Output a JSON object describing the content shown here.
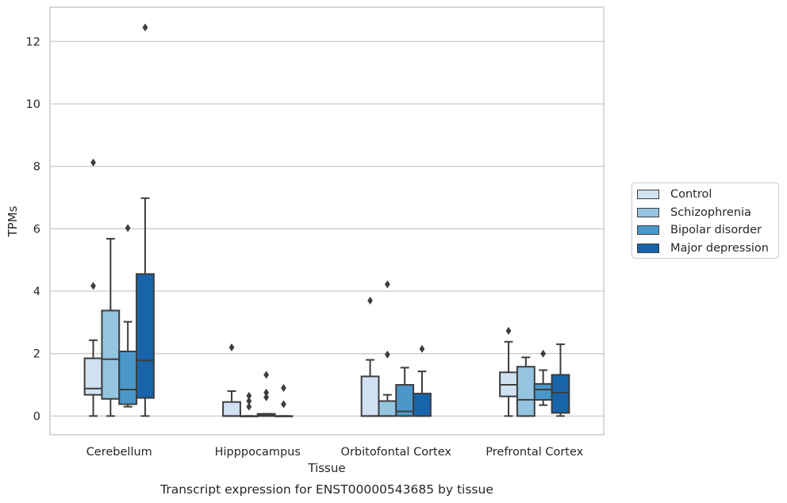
{
  "chart_data": {
    "type": "boxplot",
    "title": "Transcript expression for ENST00000543685 by tissue",
    "xlabel": "Tissue",
    "ylabel": "TPMs",
    "ylim": [
      -0.6,
      13.1
    ],
    "yticks": [
      0,
      2,
      4,
      6,
      8,
      10,
      12
    ],
    "grid": "horizontal",
    "legend_position": "right",
    "categories": [
      "Cerebellum",
      "Hipppocampus",
      "Orbitofontal Cortex",
      "Prefrontal Cortex"
    ],
    "series": [
      {
        "name": "Control",
        "color": "#d0e1f2",
        "boxes": [
          {
            "whislo": 0.0,
            "q1": 0.68,
            "med": 0.88,
            "q3": 1.85,
            "whishi": 2.43,
            "fliers": [
              4.17,
              8.12
            ]
          },
          {
            "whislo": 0.0,
            "q1": 0.0,
            "med": 0.0,
            "q3": 0.45,
            "whishi": 0.8,
            "fliers": [
              2.2
            ]
          },
          {
            "whislo": 0.0,
            "q1": 0.0,
            "med": 0.0,
            "q3": 1.27,
            "whishi": 1.8,
            "fliers": [
              3.7
            ]
          },
          {
            "whislo": 0.0,
            "q1": 0.63,
            "med": 1.0,
            "q3": 1.4,
            "whishi": 2.38,
            "fliers": [
              2.73
            ]
          }
        ]
      },
      {
        "name": "Schizophrenia",
        "color": "#94c4df",
        "boxes": [
          {
            "whislo": 0.0,
            "q1": 0.55,
            "med": 1.82,
            "q3": 3.38,
            "whishi": 5.68,
            "fliers": []
          },
          {
            "whislo": 0.0,
            "q1": 0.0,
            "med": 0.0,
            "q3": 0.0,
            "whishi": 0.0,
            "fliers": [
              0.3,
              0.48,
              0.65
            ]
          },
          {
            "whislo": 0.0,
            "q1": 0.0,
            "med": 0.0,
            "q3": 0.48,
            "whishi": 0.68,
            "fliers": [
              1.97,
              4.22
            ]
          },
          {
            "whislo": 0.0,
            "q1": 0.0,
            "med": 0.52,
            "q3": 1.58,
            "whishi": 1.88,
            "fliers": []
          }
        ]
      },
      {
        "name": "Bipolar disorder",
        "color": "#4a98c9",
        "boxes": [
          {
            "whislo": 0.3,
            "q1": 0.38,
            "med": 0.85,
            "q3": 2.07,
            "whishi": 3.02,
            "fliers": [
              6.02
            ]
          },
          {
            "whislo": 0.0,
            "q1": 0.0,
            "med": 0.04,
            "q3": 0.07,
            "whishi": 0.07,
            "fliers": [
              0.6,
              0.75,
              1.32
            ]
          },
          {
            "whislo": 0.0,
            "q1": 0.0,
            "med": 0.15,
            "q3": 1.0,
            "whishi": 1.55,
            "fliers": []
          },
          {
            "whislo": 0.35,
            "q1": 0.52,
            "med": 0.85,
            "q3": 1.03,
            "whishi": 1.47,
            "fliers": [
              2.0
            ]
          }
        ]
      },
      {
        "name": "Major depression",
        "color": "#1764ab",
        "boxes": [
          {
            "whislo": 0.0,
            "q1": 0.58,
            "med": 1.78,
            "q3": 4.55,
            "whishi": 6.98,
            "fliers": [
              12.45
            ]
          },
          {
            "whislo": 0.0,
            "q1": 0.0,
            "med": 0.0,
            "q3": 0.0,
            "whishi": 0.0,
            "fliers": [
              0.38,
              0.9
            ]
          },
          {
            "whislo": 0.0,
            "q1": 0.0,
            "med": 0.0,
            "q3": 0.72,
            "whishi": 1.43,
            "fliers": [
              2.15
            ]
          },
          {
            "whislo": 0.0,
            "q1": 0.1,
            "med": 0.75,
            "q3": 1.32,
            "whishi": 2.3,
            "fliers": []
          }
        ]
      }
    ]
  }
}
